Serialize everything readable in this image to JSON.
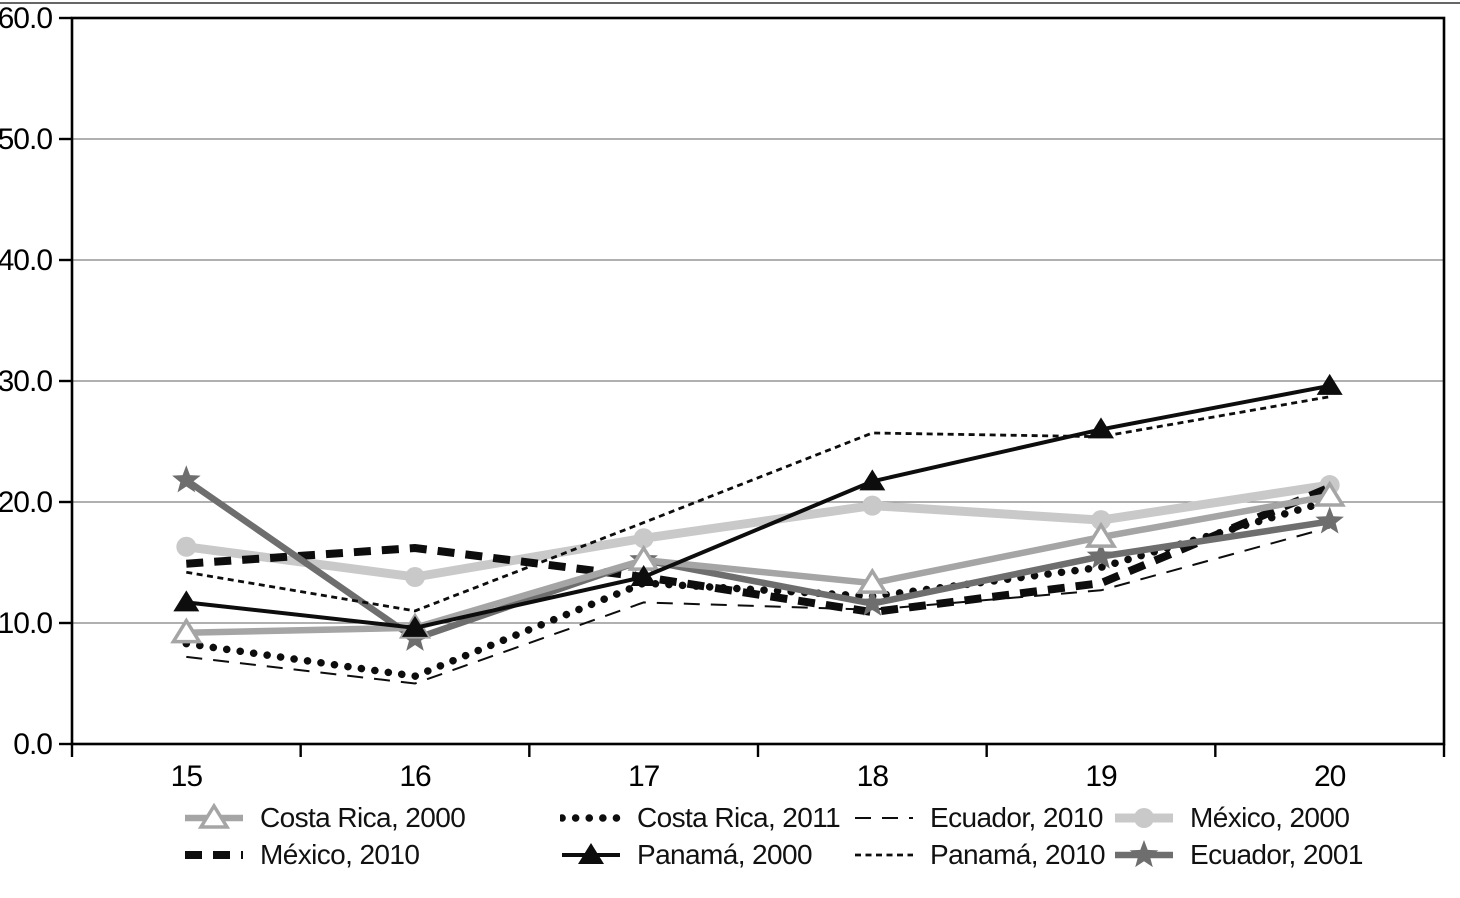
{
  "figure": {
    "background": "#ffffff",
    "grid_color": "#808080",
    "axis_color": "#000000",
    "text_color": "#111111"
  },
  "chart_data": {
    "type": "line",
    "title": "",
    "xlabel": "",
    "ylabel": "",
    "x": [
      15,
      16,
      17,
      18,
      19,
      20
    ],
    "xtick_labels": [
      "15",
      "16",
      "17",
      "18",
      "19",
      "20"
    ],
    "ytick_labels": [
      "0.0",
      "10.0",
      "20.0",
      "30.0",
      "40.0",
      "50.0",
      "60.0"
    ],
    "ylim": [
      0,
      60
    ],
    "ytick_step": 10,
    "grid": "horizontal",
    "legend_position": "bottom",
    "series": [
      {
        "name": "Costa Rica, 2000",
        "values": [
          9.2,
          9.6,
          15.2,
          13.3,
          17.1,
          20.5
        ],
        "color": "#a5a5a5",
        "line": "solid",
        "marker": "open-triangle",
        "width": 6.5
      },
      {
        "name": "Costa Rica, 2011",
        "values": [
          8.3,
          5.6,
          13.3,
          12.2,
          14.6,
          20.1
        ],
        "color": "#0d0d0d",
        "line": "dot",
        "marker": "none",
        "width": 7.5
      },
      {
        "name": "Ecuador, 2010",
        "values": [
          7.2,
          5.0,
          11.7,
          11.1,
          12.7,
          17.9
        ],
        "color": "#0d0d0d",
        "line": "long-dash",
        "marker": "none",
        "width": 2
      },
      {
        "name": "México, 2000",
        "values": [
          16.3,
          13.8,
          17.0,
          19.7,
          18.5,
          21.4
        ],
        "color": "#c9c9c9",
        "line": "solid",
        "marker": "circle",
        "width": 9
      },
      {
        "name": "México, 2010",
        "values": [
          14.9,
          16.2,
          13.8,
          10.9,
          13.3,
          21.2
        ],
        "color": "#0d0d0d",
        "line": "thick-dash",
        "marker": "none",
        "width": 8
      },
      {
        "name": "Panamá, 2000",
        "values": [
          11.7,
          9.6,
          13.8,
          21.7,
          26.0,
          29.6
        ],
        "color": "#0d0d0d",
        "line": "solid",
        "marker": "filled-triangle",
        "width": 4
      },
      {
        "name": "Panamá, 2010",
        "values": [
          14.2,
          11.0,
          18.3,
          25.7,
          25.4,
          28.7
        ],
        "color": "#0d0d0d",
        "line": "fine-dash",
        "marker": "none",
        "width": 2.8
      },
      {
        "name": "Ecuador, 2001",
        "values": [
          21.8,
          8.7,
          15.2,
          11.6,
          15.5,
          18.4
        ],
        "color": "#6e6e6e",
        "line": "solid",
        "marker": "star",
        "width": 6.5
      }
    ]
  }
}
